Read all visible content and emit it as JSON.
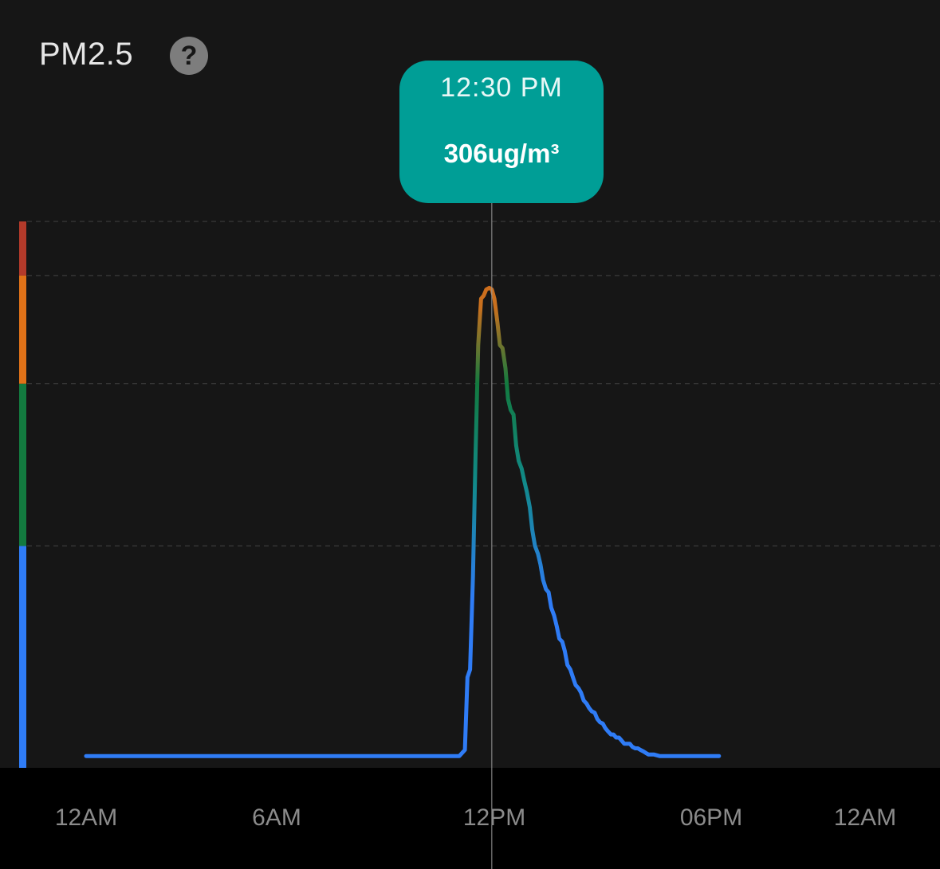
{
  "header": {
    "title": "PM2.5",
    "help_icon": "question-circle-icon",
    "help_glyph": "?"
  },
  "tooltip": {
    "time": "12:30 PM",
    "value": "306ug/m³"
  },
  "colors": {
    "background": "#161616",
    "tooltip": "#009e96",
    "level_good": "#2f7cf6",
    "level_moderate": "#137a3f",
    "level_unhealthy": "#e07218",
    "level_hazardous": "#b33a2a"
  },
  "chart_data": {
    "type": "line",
    "title": "PM2.5",
    "unit": "ug/m³",
    "x_ticks": [
      "12AM",
      "6AM",
      "12PM",
      "06PM",
      "12AM"
    ],
    "xlim_hours": [
      0,
      24
    ],
    "ylim": [
      0,
      350
    ],
    "level_bands": [
      {
        "from": 0,
        "to": 140,
        "color": "#2f7cf6"
      },
      {
        "from": 140,
        "to": 245,
        "color": "#137a3f"
      },
      {
        "from": 245,
        "to": 315,
        "color": "#e07218"
      },
      {
        "from": 315,
        "to": 350,
        "color": "#b33a2a"
      }
    ],
    "gridlines": [
      140,
      245,
      315,
      350
    ],
    "selected": {
      "hour": 12.5,
      "value": 306
    },
    "series": [
      {
        "x": [
          0.0,
          11.5,
          11.67,
          11.75,
          11.83,
          11.92,
          12.0,
          12.08,
          12.17,
          12.25,
          12.33,
          12.42,
          12.5,
          12.58,
          12.67,
          12.75,
          12.83,
          12.92,
          13.0,
          13.08,
          13.17,
          13.25,
          13.33,
          13.42,
          13.5,
          13.58,
          13.67,
          13.75,
          13.83,
          13.92,
          14.0,
          14.08,
          14.17,
          14.25,
          14.33,
          14.42,
          14.5,
          14.58,
          14.67,
          14.75,
          14.83,
          14.92,
          15.0,
          15.08,
          15.17,
          15.25,
          15.33,
          15.42,
          15.5,
          15.58,
          15.67,
          15.75,
          15.83,
          15.92,
          16.0,
          16.08,
          16.17,
          16.25,
          16.33,
          16.42,
          16.5,
          16.58,
          16.67,
          16.75,
          16.83,
          16.92,
          17.0,
          17.08,
          17.17,
          17.25,
          17.33,
          17.5,
          17.67,
          17.83,
          18.0,
          18.33,
          18.67,
          19.0,
          19.5
        ],
        "values": [
          4,
          4,
          8,
          55,
          60,
          120,
          200,
          270,
          300,
          302,
          306,
          307,
          306,
          300,
          285,
          270,
          268,
          255,
          235,
          228,
          225,
          205,
          195,
          190,
          182,
          175,
          165,
          150,
          140,
          135,
          128,
          118,
          112,
          110,
          100,
          95,
          88,
          80,
          78,
          72,
          63,
          60,
          55,
          50,
          48,
          45,
          40,
          38,
          35,
          33,
          32,
          28,
          26,
          25,
          22,
          20,
          18,
          18,
          16,
          16,
          14,
          12,
          12,
          12,
          10,
          9,
          9,
          8,
          7,
          6,
          5,
          5,
          4,
          4,
          4,
          4,
          4,
          4,
          4
        ]
      }
    ]
  }
}
